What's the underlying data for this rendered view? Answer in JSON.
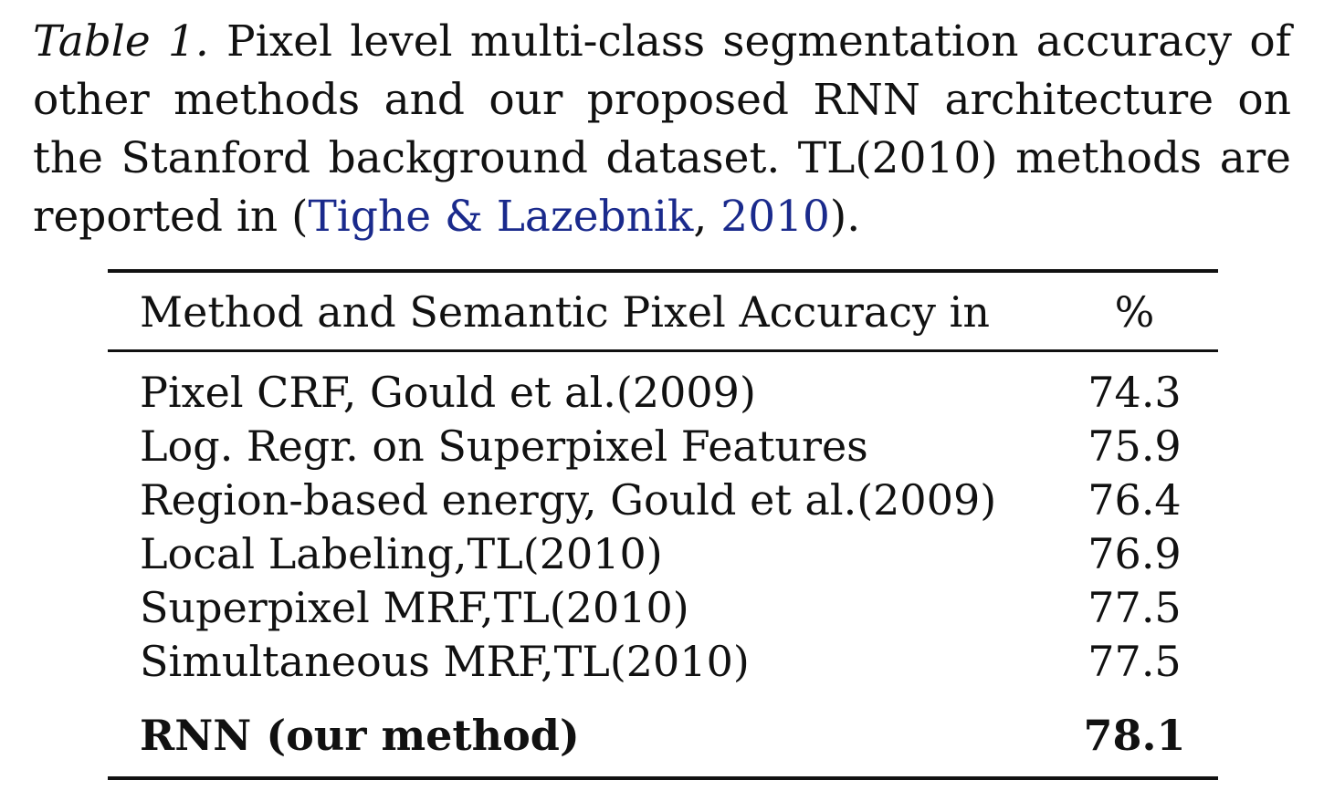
{
  "caption": {
    "label": "Table 1.",
    "text_before_cite": " Pixel level multi-class segmentation accuracy of other methods and our proposed RNN architecture on the Stanford background dataset. TL(2010) methods are reported in (",
    "cite_authors": "Tighe & Lazebnik",
    "cite_sep": ", ",
    "cite_year": "2010",
    "text_after_cite": ")."
  },
  "table": {
    "header": {
      "method": "Method and Semantic Pixel Accuracy in",
      "value": "%"
    },
    "rows": [
      {
        "method": "Pixel CRF, Gould et al.(2009)",
        "value": "74.3"
      },
      {
        "method": "Log. Regr. on Superpixel Features",
        "value": "75.9"
      },
      {
        "method": "Region-based energy, Gould et al.(2009)",
        "value": "76.4"
      },
      {
        "method": "Local Labeling,TL(2010)",
        "value": "76.9"
      },
      {
        "method": "Superpixel MRF,TL(2010)",
        "value": "77.5"
      },
      {
        "method": "Simultaneous MRF,TL(2010)",
        "value": "77.5"
      }
    ],
    "highlight_row": {
      "method": "RNN (our method)",
      "value": "78.1"
    }
  },
  "colors": {
    "citation": "#1a2a8c",
    "text": "#111111"
  }
}
